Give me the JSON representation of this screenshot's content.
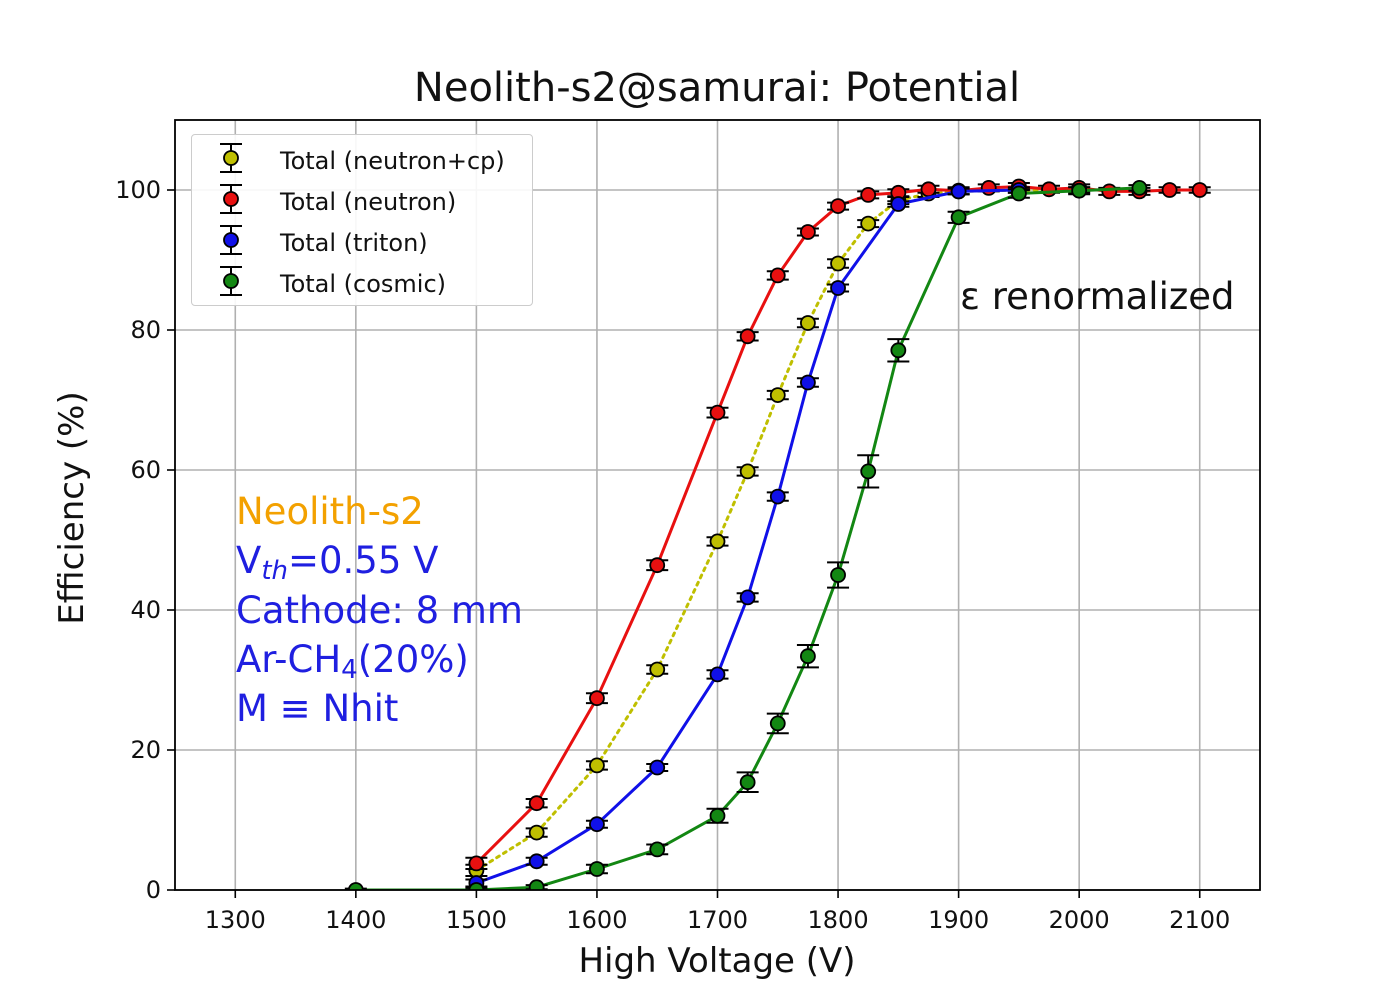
{
  "chart_data": {
    "type": "scatter",
    "title": "Neolith-s2@samurai: Potential",
    "xlabel": "High Voltage (V)",
    "ylabel": "Efficiency (%)",
    "xlim": [
      1250,
      2150
    ],
    "ylim": [
      0,
      110
    ],
    "xticks": [
      1300,
      1400,
      1500,
      1600,
      1700,
      1800,
      1900,
      2000,
      2100
    ],
    "yticks": [
      0,
      20,
      40,
      60,
      80,
      100
    ],
    "grid": true,
    "legend_position": "top-left",
    "note": "ε renormalized",
    "info_lines": [
      "Neolith-s2",
      "Vth=0.55 V",
      "Cathode: 8 mm",
      "Ar-CH4(20%)",
      "M ≡ Nhit"
    ],
    "series": [
      {
        "name": "Total (neutron+cp)",
        "color": "#bfbf00",
        "line_style": "dotted",
        "points": [
          {
            "x": 1500,
            "y": 2.8,
            "err": 0.8
          },
          {
            "x": 1550,
            "y": 8.2,
            "err": 0.6
          },
          {
            "x": 1600,
            "y": 17.8,
            "err": 0.6
          },
          {
            "x": 1650,
            "y": 31.5,
            "err": 0.6
          },
          {
            "x": 1700,
            "y": 49.8,
            "err": 0.6
          },
          {
            "x": 1725,
            "y": 59.8,
            "err": 0.6
          },
          {
            "x": 1750,
            "y": 70.7,
            "err": 0.6
          },
          {
            "x": 1775,
            "y": 81.0,
            "err": 0.6
          },
          {
            "x": 1800,
            "y": 89.5,
            "err": 0.6
          },
          {
            "x": 1825,
            "y": 95.2,
            "err": 0.5
          },
          {
            "x": 1850,
            "y": 98.5,
            "err": 0.5
          },
          {
            "x": 1875,
            "y": 99.5,
            "err": 0.5
          },
          {
            "x": 1900,
            "y": 99.8,
            "err": 0.4
          },
          {
            "x": 1950,
            "y": 100.0,
            "err": 0.4
          },
          {
            "x": 2000,
            "y": 100.0,
            "err": 0.4
          }
        ]
      },
      {
        "name": "Total (neutron)",
        "color": "#e81010",
        "line_style": "solid",
        "points": [
          {
            "x": 1500,
            "y": 3.8,
            "err": 0.8
          },
          {
            "x": 1550,
            "y": 12.4,
            "err": 0.6
          },
          {
            "x": 1600,
            "y": 27.4,
            "err": 0.7
          },
          {
            "x": 1650,
            "y": 46.4,
            "err": 0.7
          },
          {
            "x": 1700,
            "y": 68.2,
            "err": 0.7
          },
          {
            "x": 1725,
            "y": 79.1,
            "err": 0.6
          },
          {
            "x": 1750,
            "y": 87.8,
            "err": 0.6
          },
          {
            "x": 1775,
            "y": 94.0,
            "err": 0.5
          },
          {
            "x": 1800,
            "y": 97.7,
            "err": 0.5
          },
          {
            "x": 1825,
            "y": 99.3,
            "err": 0.5
          },
          {
            "x": 1850,
            "y": 99.6,
            "err": 0.5
          },
          {
            "x": 1875,
            "y": 100.1,
            "err": 0.5
          },
          {
            "x": 1900,
            "y": 99.9,
            "err": 0.5
          },
          {
            "x": 1925,
            "y": 100.3,
            "err": 0.5
          },
          {
            "x": 1950,
            "y": 100.5,
            "err": 0.5
          },
          {
            "x": 1975,
            "y": 100.1,
            "err": 0.5
          },
          {
            "x": 2000,
            "y": 100.3,
            "err": 0.5
          },
          {
            "x": 2025,
            "y": 99.8,
            "err": 0.5
          },
          {
            "x": 2050,
            "y": 99.8,
            "err": 0.5
          },
          {
            "x": 2075,
            "y": 100.0,
            "err": 0.4
          },
          {
            "x": 2100,
            "y": 100.0,
            "err": 0.4
          }
        ]
      },
      {
        "name": "Total (triton)",
        "color": "#1010e8",
        "line_style": "solid",
        "points": [
          {
            "x": 1500,
            "y": 1.0,
            "err": 0.5
          },
          {
            "x": 1550,
            "y": 4.1,
            "err": 0.5
          },
          {
            "x": 1600,
            "y": 9.4,
            "err": 0.5
          },
          {
            "x": 1650,
            "y": 17.5,
            "err": 0.5
          },
          {
            "x": 1700,
            "y": 30.8,
            "err": 0.6
          },
          {
            "x": 1725,
            "y": 41.8,
            "err": 0.6
          },
          {
            "x": 1750,
            "y": 56.2,
            "err": 0.6
          },
          {
            "x": 1775,
            "y": 72.5,
            "err": 0.6
          },
          {
            "x": 1800,
            "y": 86.0,
            "err": 0.5
          },
          {
            "x": 1850,
            "y": 98.0,
            "err": 0.4
          },
          {
            "x": 1900,
            "y": 99.8,
            "err": 0.4
          },
          {
            "x": 1950,
            "y": 100.0,
            "err": 0.4
          }
        ]
      },
      {
        "name": "Total (cosmic)",
        "color": "#138713",
        "line_style": "solid",
        "points": [
          {
            "x": 1400,
            "y": 0.0,
            "err": 0.2
          },
          {
            "x": 1500,
            "y": 0.0,
            "err": 0.3
          },
          {
            "x": 1550,
            "y": 0.4,
            "err": 0.3
          },
          {
            "x": 1600,
            "y": 3.0,
            "err": 0.6
          },
          {
            "x": 1650,
            "y": 5.8,
            "err": 0.7
          },
          {
            "x": 1700,
            "y": 10.6,
            "err": 1.0
          },
          {
            "x": 1725,
            "y": 15.4,
            "err": 1.4
          },
          {
            "x": 1750,
            "y": 23.8,
            "err": 1.4
          },
          {
            "x": 1775,
            "y": 33.4,
            "err": 1.6
          },
          {
            "x": 1800,
            "y": 45.0,
            "err": 1.8
          },
          {
            "x": 1825,
            "y": 59.8,
            "err": 2.3
          },
          {
            "x": 1850,
            "y": 77.1,
            "err": 1.6
          },
          {
            "x": 1900,
            "y": 96.1,
            "err": 0.8
          },
          {
            "x": 1950,
            "y": 99.5,
            "err": 0.6
          },
          {
            "x": 2000,
            "y": 99.9,
            "err": 0.5
          },
          {
            "x": 2050,
            "y": 100.3,
            "err": 0.4
          }
        ]
      }
    ]
  }
}
